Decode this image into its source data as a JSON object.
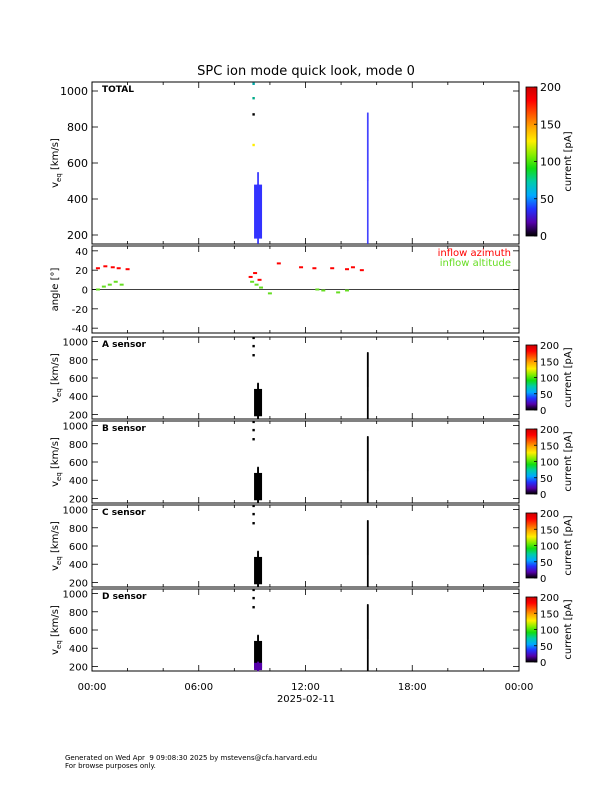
{
  "title": "SPC ion mode quick look, mode 0",
  "footer": {
    "line1": "Generated on Wed Apr  9 09:08:30 2025 by mstevens@cfa.harvard.edu",
    "line2": "For browse purposes only."
  },
  "colors": {
    "azimuth": "#ff0000",
    "altitude": "#66dd22",
    "blue_marks": "#3333ff",
    "black_marks": "#000000",
    "colormap": [
      "#000000",
      "#5500aa",
      "#2233ff",
      "#00aaff",
      "#00ccaa",
      "#11dd11",
      "#88ee00",
      "#ffee00",
      "#ffaa00",
      "#ff5500",
      "#ff0000",
      "#cc0000"
    ]
  },
  "x_axis": {
    "range": [
      "00:00",
      "24:00"
    ],
    "ticks": [
      "00:00",
      "06:00",
      "12:00",
      "18:00",
      "00:00"
    ],
    "date_label": "2025-02-11"
  },
  "chart_data": [
    {
      "type": "spectrogram",
      "panel_label": "TOTAL",
      "ylabel": "v_eq [km/s]",
      "ylabel_main": "v",
      "ylabel_sub": "eq",
      "ylabel_unit": " [km/s]",
      "ylim": [
        150,
        1050
      ],
      "yticks": [
        200,
        400,
        600,
        800,
        1000
      ],
      "colorbar": {
        "label": "current [pA]",
        "range": [
          0,
          200
        ],
        "ticks": [
          0,
          50,
          100,
          150,
          200
        ]
      },
      "color_scheme": "blue",
      "features": [
        {
          "time": "09:20",
          "v_range": [
            155,
            545
          ],
          "dense_v_range": [
            180,
            480
          ],
          "color": "#3333ff"
        },
        {
          "time": "15:30",
          "v_range": [
            155,
            880
          ],
          "dense_v_range": [
            500,
            880
          ],
          "color": "#4444ff"
        },
        {
          "time": "09:05",
          "v_points": [
            1040,
            960,
            870,
            700
          ],
          "colors": [
            "#00aaaa",
            "#00aa88",
            "#000000",
            "#ffee00"
          ]
        }
      ]
    },
    {
      "type": "line",
      "ylabel": "angle [°]",
      "ylim": [
        -45,
        45
      ],
      "yticks": [
        -40,
        -20,
        0,
        20,
        40
      ],
      "series": [
        {
          "name": "inflow azimuth",
          "color": "#ff0000",
          "x": [
            "00:20",
            "00:45",
            "01:10",
            "01:30",
            "02:00",
            "08:55",
            "09:10",
            "09:25",
            "10:30",
            "11:45",
            "12:30",
            "13:30",
            "14:20",
            "14:40",
            "15:10"
          ],
          "y": [
            22,
            24,
            23,
            22,
            21,
            13,
            17,
            10,
            27,
            23,
            22,
            22,
            21,
            23,
            20
          ]
        },
        {
          "name": "inflow altitude",
          "color": "#66dd22",
          "x": [
            "00:20",
            "00:40",
            "01:00",
            "01:20",
            "01:40",
            "09:00",
            "09:15",
            "09:30",
            "10:00",
            "12:40",
            "13:00",
            "13:50",
            "14:20"
          ],
          "y": [
            0,
            3,
            5,
            8,
            5,
            8,
            5,
            2,
            -4,
            0,
            -1,
            -3,
            -1
          ]
        }
      ]
    },
    {
      "type": "spectrogram",
      "panel_label": "A sensor",
      "ylabel": "v_eq [km/s]",
      "ylabel_main": "v",
      "ylabel_sub": "eq",
      "ylabel_unit": " [km/s]",
      "ylim": [
        150,
        1050
      ],
      "yticks": [
        200,
        400,
        600,
        800,
        1000
      ],
      "colorbar": {
        "label": "current [pA]",
        "range": [
          0,
          200
        ],
        "ticks": [
          0,
          50,
          100,
          150,
          200
        ]
      },
      "color_scheme": "black",
      "features": [
        {
          "time": "09:20",
          "v_range": [
            155,
            540
          ],
          "dense_v_range": [
            180,
            480
          ],
          "color": "#000000"
        },
        {
          "time": "15:30",
          "v_range": [
            155,
            880
          ],
          "dense_v_range": [
            500,
            880
          ],
          "color": "#000000"
        },
        {
          "time": "09:05",
          "v_points": [
            1040,
            950,
            850
          ],
          "colors": [
            "#000000",
            "#000000",
            "#000000"
          ]
        }
      ]
    },
    {
      "type": "spectrogram",
      "panel_label": "B sensor",
      "ylabel": "v_eq [km/s]",
      "ylabel_main": "v",
      "ylabel_sub": "eq",
      "ylabel_unit": " [km/s]",
      "ylim": [
        150,
        1050
      ],
      "yticks": [
        200,
        400,
        600,
        800,
        1000
      ],
      "colorbar": {
        "label": "current [pA]",
        "range": [
          0,
          200
        ],
        "ticks": [
          0,
          50,
          100,
          150,
          200
        ]
      },
      "color_scheme": "black",
      "features": [
        {
          "time": "09:20",
          "v_range": [
            155,
            540
          ],
          "dense_v_range": [
            180,
            480
          ],
          "color": "#000000"
        },
        {
          "time": "15:30",
          "v_range": [
            155,
            880
          ],
          "dense_v_range": [
            500,
            880
          ],
          "color": "#000000"
        },
        {
          "time": "09:05",
          "v_points": [
            1040,
            950,
            850
          ],
          "colors": [
            "#000000",
            "#000000",
            "#000000"
          ]
        }
      ]
    },
    {
      "type": "spectrogram",
      "panel_label": "C sensor",
      "ylabel": "v_eq [km/s]",
      "ylabel_main": "v",
      "ylabel_sub": "eq",
      "ylabel_unit": " [km/s]",
      "ylim": [
        150,
        1050
      ],
      "yticks": [
        200,
        400,
        600,
        800,
        1000
      ],
      "colorbar": {
        "label": "current [pA]",
        "range": [
          0,
          200
        ],
        "ticks": [
          0,
          50,
          100,
          150,
          200
        ]
      },
      "color_scheme": "black",
      "features": [
        {
          "time": "09:20",
          "v_range": [
            155,
            540
          ],
          "dense_v_range": [
            180,
            480
          ],
          "color": "#000000"
        },
        {
          "time": "15:30",
          "v_range": [
            155,
            880
          ],
          "dense_v_range": [
            500,
            880
          ],
          "color": "#000000"
        },
        {
          "time": "09:05",
          "v_points": [
            1040,
            950,
            850
          ],
          "colors": [
            "#000000",
            "#000000",
            "#000000"
          ]
        }
      ]
    },
    {
      "type": "spectrogram",
      "panel_label": "D sensor",
      "ylabel": "v_eq [km/s]",
      "ylabel_main": "v",
      "ylabel_sub": "eq",
      "ylabel_unit": " [km/s]",
      "ylim": [
        150,
        1050
      ],
      "yticks": [
        200,
        400,
        600,
        800,
        1000
      ],
      "colorbar": {
        "label": "current [pA]",
        "range": [
          0,
          200
        ],
        "ticks": [
          0,
          50,
          100,
          150,
          200
        ]
      },
      "color_scheme": "black",
      "features": [
        {
          "time": "09:20",
          "v_range": [
            155,
            540
          ],
          "dense_v_range": [
            180,
            480
          ],
          "color": "#000000"
        },
        {
          "time": "09:20",
          "v_range": [
            155,
            250
          ],
          "dense_v_range": [
            160,
            240
          ],
          "color": "#5500aa"
        },
        {
          "time": "15:30",
          "v_range": [
            155,
            880
          ],
          "dense_v_range": [
            500,
            880
          ],
          "color": "#000000"
        },
        {
          "time": "09:05",
          "v_points": [
            1040,
            950,
            850
          ],
          "colors": [
            "#000000",
            "#000000",
            "#000000"
          ]
        }
      ]
    }
  ]
}
